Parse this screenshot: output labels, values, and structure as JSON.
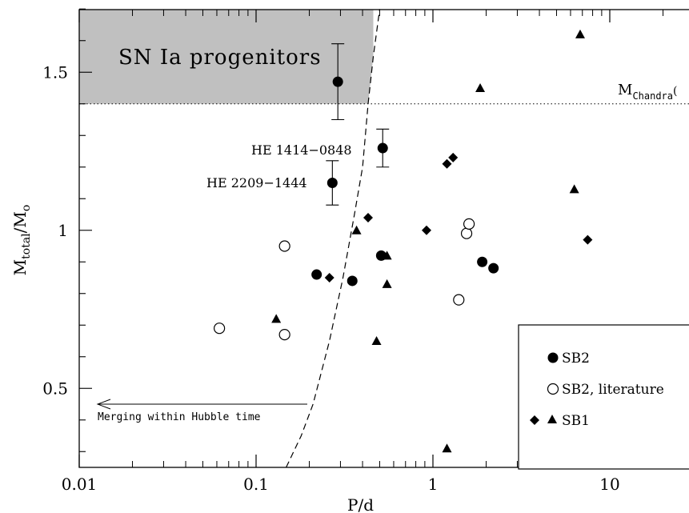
{
  "chart_data": {
    "type": "scatter",
    "xscale": "log",
    "xlim": [
      0.01,
      30
    ],
    "ylim": [
      0.25,
      1.7
    ],
    "xlabel": "P/d",
    "ylabel": "M_total/M_o",
    "xticks": [
      {
        "value": 0.01,
        "label": "0.01"
      },
      {
        "value": 0.1,
        "label": "0.1"
      },
      {
        "value": 1,
        "label": "1"
      },
      {
        "value": 10,
        "label": "10"
      }
    ],
    "yticks": [
      {
        "value": 0.5,
        "label": "0.5"
      },
      {
        "value": 1,
        "label": "1"
      },
      {
        "value": 1.5,
        "label": "1.5"
      }
    ],
    "series": [
      {
        "name": "SB2",
        "marker": "filled-circle",
        "points": [
          {
            "x": 0.29,
            "y": 1.47,
            "yerr": [
              1.35,
              1.59
            ]
          },
          {
            "x": 0.52,
            "y": 1.26,
            "yerr": [
              1.2,
              1.32
            ]
          },
          {
            "x": 0.27,
            "y": 1.15,
            "yerr": [
              1.08,
              1.22
            ]
          },
          {
            "x": 0.22,
            "y": 0.86
          },
          {
            "x": 0.35,
            "y": 0.84
          },
          {
            "x": 0.51,
            "y": 0.92
          },
          {
            "x": 1.9,
            "y": 0.9
          },
          {
            "x": 2.2,
            "y": 0.88
          }
        ]
      },
      {
        "name": "SB2, literature",
        "marker": "open-circle",
        "points": [
          {
            "x": 0.062,
            "y": 0.69
          },
          {
            "x": 0.145,
            "y": 0.95
          },
          {
            "x": 0.145,
            "y": 0.67
          },
          {
            "x": 1.4,
            "y": 0.78
          },
          {
            "x": 1.55,
            "y": 0.99
          },
          {
            "x": 1.6,
            "y": 1.02
          }
        ]
      },
      {
        "name": "SB1",
        "marker": "filled-diamond",
        "points": [
          {
            "x": 0.26,
            "y": 0.85
          },
          {
            "x": 0.43,
            "y": 1.04
          },
          {
            "x": 0.92,
            "y": 1.0
          },
          {
            "x": 1.2,
            "y": 1.21
          },
          {
            "x": 1.3,
            "y": 1.23
          },
          {
            "x": 7.5,
            "y": 0.97
          }
        ]
      },
      {
        "name": "SB1",
        "marker": "filled-triangle",
        "points": [
          {
            "x": 0.13,
            "y": 0.72
          },
          {
            "x": 0.37,
            "y": 1.0
          },
          {
            "x": 0.55,
            "y": 0.92
          },
          {
            "x": 0.55,
            "y": 0.83
          },
          {
            "x": 0.48,
            "y": 0.65
          },
          {
            "x": 1.85,
            "y": 1.45
          },
          {
            "x": 1.2,
            "y": 0.31
          },
          {
            "x": 6.3,
            "y": 1.13
          },
          {
            "x": 6.8,
            "y": 1.62
          }
        ]
      }
    ],
    "chandrasekhar_limit": {
      "y": 1.4,
      "label": "M_Chandra"
    },
    "shaded_region": {
      "label": "SN Ia progenitors",
      "y_min": 1.4
    },
    "hubble_boundary": {
      "style": "dashed",
      "points": [
        [
          0.148,
          0.25
        ],
        [
          0.18,
          0.35
        ],
        [
          0.21,
          0.45
        ],
        [
          0.26,
          0.65
        ],
        [
          0.31,
          0.85
        ],
        [
          0.36,
          1.05
        ],
        [
          0.4,
          1.2
        ],
        [
          0.43,
          1.4
        ],
        [
          0.46,
          1.55
        ],
        [
          0.5,
          1.7
        ]
      ]
    },
    "annotations": [
      {
        "text": "HE 1414−0848",
        "x": 0.52,
        "y": 1.26
      },
      {
        "text": "HE 2209−1444",
        "x": 0.27,
        "y": 1.15
      },
      {
        "text": "Merging within Hubble time",
        "arrow_from_x": 0.19,
        "arrow_to_x": 0.012,
        "y": 0.45
      }
    ],
    "legend": {
      "position": "bottom-right",
      "entries": [
        {
          "label": "SB2",
          "marker": "filled-circle"
        },
        {
          "label": "SB2, literature",
          "marker": "open-circle"
        },
        {
          "label": "SB1",
          "markers": [
            "filled-diamond",
            "filled-triangle"
          ]
        }
      ]
    }
  }
}
